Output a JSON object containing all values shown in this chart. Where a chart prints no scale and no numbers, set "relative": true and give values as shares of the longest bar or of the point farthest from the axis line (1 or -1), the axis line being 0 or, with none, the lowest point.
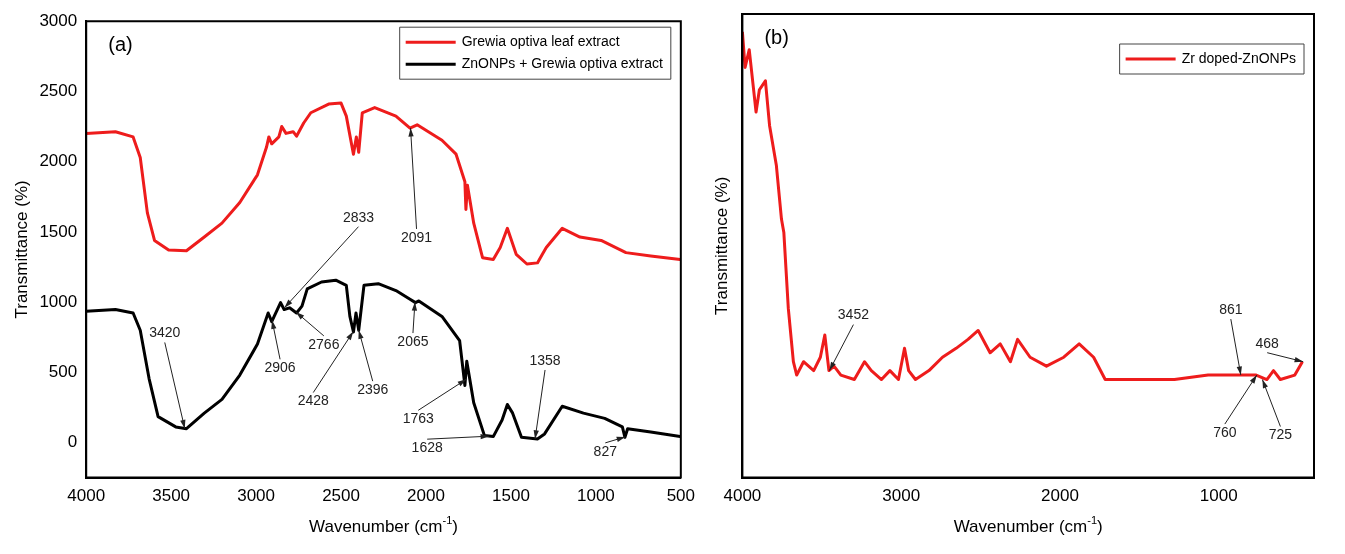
{
  "chart_data": [
    {
      "type": "line",
      "xlabel": "Wavenumber (cm$^{-1}$)",
      "ylabel": "Transmittance (%)",
      "xlim": [
        4000,
        500
      ],
      "xticks": [
        4000,
        3500,
        3000,
        2500,
        2000,
        1500,
        1000,
        500
      ],
      "ylim": [
        -250,
        3000
      ],
      "yticks": [
        0,
        500,
        1000,
        1500,
        2000,
        2500,
        3000
      ],
      "grid": false,
      "legend": "top right",
      "marker": "none",
      "line_style": "solid",
      "series": [
        {
          "name": "Grewia optiva leaf extract",
          "color": "#ee1c1c",
          "x": [
            4000,
            3828,
            3724,
            3682,
            3640,
            3598,
            3515,
            3410,
            3305,
            3201,
            3096,
            2992,
            2939,
            2925,
            2908,
            2866,
            2849,
            2824,
            2782,
            2762,
            2720,
            2678,
            2573,
            2500,
            2469,
            2427,
            2410,
            2396,
            2375,
            2302,
            2177,
            2094,
            2052,
            1906,
            1823,
            1771,
            1765,
            1756,
            1719,
            1667,
            1604,
            1563,
            1521,
            1469,
            1406,
            1344,
            1292,
            1198,
            1094,
            969,
            844,
            823,
            677,
            504
          ],
          "values": [
            2200,
            2213,
            2176,
            2029,
            1635,
            1439,
            1370,
            1365,
            1463,
            1562,
            1709,
            1906,
            2102,
            2176,
            2127,
            2176,
            2250,
            2201,
            2213,
            2181,
            2275,
            2348,
            2410,
            2417,
            2324,
            2053,
            2176,
            2066,
            2348,
            2385,
            2324,
            2238,
            2262,
            2152,
            2053,
            1857,
            1660,
            1832,
            1562,
            1316,
            1303,
            1389,
            1525,
            1340,
            1271,
            1279,
            1389,
            1525,
            1463,
            1439,
            1365,
            1352,
            1328,
            1303
          ]
        },
        {
          "name": "ZnONPs + Grewia optiva extract",
          "color": "#000000",
          "x": [
            4000,
            3828,
            3724,
            3682,
            3630,
            3577,
            3473,
            3410,
            3305,
            3201,
            3096,
            2992,
            2929,
            2908,
            2856,
            2835,
            2803,
            2762,
            2730,
            2699,
            2615,
            2531,
            2469,
            2448,
            2427,
            2412,
            2396,
            2365,
            2281,
            2177,
            2094,
            2062,
            2042,
            1906,
            1802,
            1771,
            1760,
            1719,
            1656,
            1604,
            1552,
            1521,
            1490,
            1438,
            1344,
            1302,
            1198,
            1073,
            948,
            844,
            829,
            813,
            677,
            504
          ],
          "values": [
            934,
            947,
            922,
            799,
            455,
            184,
            111,
            98,
            209,
            307,
            480,
            701,
            922,
            861,
            996,
            947,
            959,
            922,
            971,
            1094,
            1143,
            1156,
            1119,
            898,
            787,
            922,
            799,
            1119,
            1131,
            1082,
            1020,
            996,
            1008,
            898,
            725,
            406,
            578,
            283,
            49,
            42,
            160,
            271,
            209,
            37,
            25,
            61,
            258,
            209,
            172,
            111,
            37,
            98,
            74,
            42
          ]
        }
      ],
      "annotations": [
        "(a)",
        {
          "text": "3420",
          "x": 3420,
          "y": 100
        },
        {
          "text": "2833",
          "x": 2833,
          "y": 960
        },
        {
          "text": "2906",
          "x": 2906,
          "y": 870
        },
        {
          "text": "2766",
          "x": 2766,
          "y": 930
        },
        {
          "text": "2428",
          "x": 2428,
          "y": 790
        },
        {
          "text": "2396",
          "x": 2396,
          "y": 800
        },
        {
          "text": "2065",
          "x": 2065,
          "y": 1000
        },
        {
          "text": "2091",
          "x": 2091,
          "y": 2240
        },
        {
          "text": "1763",
          "x": 1763,
          "y": 450
        },
        {
          "text": "1628",
          "x": 1628,
          "y": 45
        },
        {
          "text": "1358",
          "x": 1358,
          "y": 25
        },
        {
          "text": "827",
          "x": 827,
          "y": 40
        }
      ]
    },
    {
      "type": "line",
      "relative": true,
      "xlabel": "Wavenumber (cm$^{-1}$)",
      "ylabel": "Transmittance (%)",
      "xlim": [
        4000,
        400
      ],
      "xticks": [
        4000,
        3000,
        2000,
        1000
      ],
      "tick_labels": "x",
      "grid": false,
      "legend": "top right",
      "marker": "none",
      "line_style": "solid",
      "series": [
        {
          "name": "Zr doped-ZnONPs",
          "color": "#ee1c1c",
          "x": [
            4000,
            3983,
            3957,
            3914,
            3893,
            3855,
            3829,
            3786,
            3754,
            3739,
            3711,
            3679,
            3658,
            3615,
            3551,
            3509,
            3481,
            3455,
            3423,
            3380,
            3295,
            3231,
            3188,
            3124,
            3071,
            3017,
            2979,
            2953,
            2910,
            2825,
            2740,
            2654,
            2579,
            2515,
            2440,
            2376,
            2312,
            2267,
            2188,
            2085,
            1976,
            1879,
            1788,
            1715,
            1497,
            1279,
            1067,
            873,
            764,
            697,
            655,
            612,
            521,
            473
          ],
          "values": [
            1.0,
            0.92,
            0.96,
            0.82,
            0.87,
            0.89,
            0.79,
            0.7,
            0.58,
            0.55,
            0.38,
            0.26,
            0.23,
            0.26,
            0.24,
            0.27,
            0.32,
            0.24,
            0.25,
            0.23,
            0.22,
            0.26,
            0.24,
            0.22,
            0.24,
            0.22,
            0.29,
            0.24,
            0.22,
            0.24,
            0.27,
            0.29,
            0.31,
            0.33,
            0.28,
            0.3,
            0.26,
            0.31,
            0.27,
            0.25,
            0.27,
            0.3,
            0.27,
            0.22,
            0.22,
            0.22,
            0.23,
            0.23,
            0.23,
            0.22,
            0.24,
            0.22,
            0.23,
            0.26
          ]
        }
      ],
      "annotations": [
        "(b)",
        {
          "text": "3452",
          "x": 3452,
          "y": 0.24
        },
        {
          "text": "861",
          "x": 861,
          "y": 0.23
        },
        {
          "text": "760",
          "x": 760,
          "y": 0.23
        },
        {
          "text": "725",
          "x": 725,
          "y": 0.22
        },
        {
          "text": "468",
          "x": 468,
          "y": 0.26
        }
      ]
    }
  ]
}
